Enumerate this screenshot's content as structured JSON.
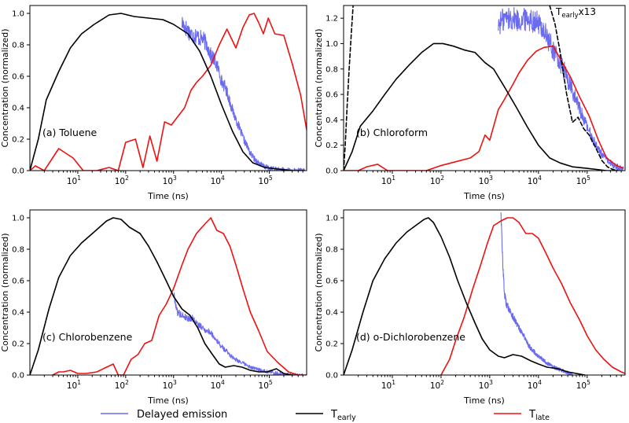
{
  "figure": {
    "legend": [
      {
        "key": "delayed",
        "label": "Delayed emission",
        "color": "#6b6bf0"
      },
      {
        "key": "early",
        "label": "T",
        "sub": "early",
        "color": "#000000"
      },
      {
        "key": "late",
        "label": "T",
        "sub": "late",
        "color": "#ee1111"
      }
    ]
  },
  "chart_data": [
    {
      "type": "line",
      "title": "(a) Toluene",
      "xlabel": "Time (ns)",
      "ylabel": "Concentration (normalized)",
      "xscale": "log",
      "xlim": [
        1,
        600000
      ],
      "ylim": [
        0,
        1.05
      ],
      "yticks": [
        "0.0",
        "0.2",
        "0.4",
        "0.6",
        "0.8",
        "1.0"
      ],
      "yticks_values": [
        0,
        0.2,
        0.4,
        0.6,
        0.8,
        1.0
      ],
      "xticks": [
        {
          "base": "10",
          "exp": "1",
          "value": 10
        },
        {
          "base": "10",
          "exp": "2",
          "value": 100
        },
        {
          "base": "10",
          "exp": "3",
          "value": 1000
        },
        {
          "base": "10",
          "exp": "4",
          "value": 10000
        },
        {
          "base": "10",
          "exp": "5",
          "value": 100000
        }
      ],
      "series": [
        {
          "name": "T_early",
          "color": "#000000",
          "x": [
            1,
            1.5,
            2.2,
            4,
            7,
            12,
            22,
            45,
            80,
            150,
            300,
            600,
            1000,
            2000,
            3500,
            6000,
            10000,
            17000,
            28000,
            45000,
            80000,
            150000,
            300000,
            550000
          ],
          "y": [
            0,
            0.2,
            0.45,
            0.63,
            0.78,
            0.87,
            0.93,
            0.99,
            1.0,
            0.98,
            0.97,
            0.96,
            0.93,
            0.87,
            0.76,
            0.6,
            0.42,
            0.25,
            0.12,
            0.05,
            0.02,
            0.01,
            0.0,
            0.0
          ]
        },
        {
          "name": "T_late",
          "color": "#ee1111",
          "x": [
            1,
            1.3,
            2,
            4,
            8,
            13,
            25,
            45,
            70,
            100,
            160,
            230,
            320,
            450,
            650,
            900,
            1200,
            1700,
            2300,
            3000,
            4000,
            6000,
            9000,
            13000,
            20000,
            28000,
            38000,
            48000,
            60000,
            75000,
            95000,
            130000,
            200000,
            300000,
            450000,
            600000
          ],
          "y": [
            0,
            0.03,
            0.0,
            0.14,
            0.08,
            0.0,
            0.0,
            0.02,
            0.0,
            0.18,
            0.2,
            0.02,
            0.22,
            0.06,
            0.31,
            0.29,
            0.34,
            0.4,
            0.51,
            0.56,
            0.6,
            0.67,
            0.8,
            0.9,
            0.78,
            0.91,
            0.99,
            1.0,
            0.94,
            0.87,
            0.97,
            0.87,
            0.86,
            0.68,
            0.48,
            0.26
          ]
        },
        {
          "name": "Delayed emission",
          "color": "#6b6bf0",
          "noisy": true,
          "x": [
            1500,
            2000,
            2500,
            3000,
            3500,
            4000,
            4500,
            5000,
            6000,
            7000,
            8000,
            9000,
            10000,
            12000,
            14000,
            16000,
            18000,
            20000,
            25000,
            30000,
            35000,
            40000,
            50000,
            60000,
            70000,
            80000,
            100000,
            130000,
            170000,
            220000,
            300000,
            400000,
            550000
          ],
          "y": [
            0.94,
            0.89,
            0.86,
            0.86,
            0.84,
            0.84,
            0.82,
            0.8,
            0.73,
            0.71,
            0.67,
            0.63,
            0.57,
            0.53,
            0.47,
            0.41,
            0.36,
            0.33,
            0.25,
            0.19,
            0.15,
            0.11,
            0.07,
            0.05,
            0.035,
            0.025,
            0.015,
            0.01,
            0.005,
            0.003,
            0.001,
            0.0,
            0.0
          ],
          "noise": 0.045
        }
      ]
    },
    {
      "type": "line",
      "title": "(b) Chloroform",
      "xlabel": "Time (ns)",
      "ylabel": "Concentration (normalized)",
      "xscale": "log",
      "xlim": [
        1,
        600000
      ],
      "ylim": [
        0,
        1.3
      ],
      "yticks": [
        "0.0",
        "0.2",
        "0.4",
        "0.6",
        "0.8",
        "1.0",
        "1.2"
      ],
      "yticks_values": [
        0,
        0.2,
        0.4,
        0.6,
        0.8,
        1.0,
        1.2
      ],
      "xticks": [
        {
          "base": "10",
          "exp": "1",
          "value": 10
        },
        {
          "base": "10",
          "exp": "2",
          "value": 100
        },
        {
          "base": "10",
          "exp": "3",
          "value": 1000
        },
        {
          "base": "10",
          "exp": "4",
          "value": 10000
        },
        {
          "base": "10",
          "exp": "5",
          "value": 100000
        }
      ],
      "annotation": {
        "text": "T",
        "sub": "early",
        "tail": "x13"
      },
      "series": [
        {
          "name": "T_early",
          "color": "#000000",
          "x": [
            1,
            1.5,
            2.2,
            4,
            7,
            12,
            22,
            40,
            70,
            110,
            180,
            300,
            500,
            800,
            1200,
            2000,
            3500,
            6000,
            10000,
            17000,
            28000,
            50000,
            90000,
            150000,
            250000,
            400000
          ],
          "y": [
            0,
            0.15,
            0.35,
            0.47,
            0.6,
            0.72,
            0.83,
            0.93,
            1.0,
            1.0,
            0.98,
            0.95,
            0.93,
            0.85,
            0.8,
            0.66,
            0.5,
            0.34,
            0.2,
            0.1,
            0.06,
            0.03,
            0.02,
            0.01,
            0.0,
            0.0
          ]
        },
        {
          "name": "T_late",
          "color": "#ee1111",
          "x": [
            1,
            2,
            3,
            5,
            8,
            20,
            50,
            100,
            200,
            400,
            600,
            800,
            1000,
            1500,
            2000,
            3000,
            4000,
            6000,
            9000,
            13000,
            20000,
            30000,
            45000,
            70000,
            110000,
            170000,
            250000,
            400000,
            550000
          ],
          "y": [
            0,
            0.0,
            0.03,
            0.05,
            0.0,
            0.0,
            0.0,
            0.04,
            0.07,
            0.1,
            0.15,
            0.28,
            0.24,
            0.48,
            0.56,
            0.68,
            0.77,
            0.87,
            0.94,
            0.97,
            0.98,
            0.86,
            0.74,
            0.58,
            0.43,
            0.24,
            0.1,
            0.04,
            0.02
          ]
        },
        {
          "name": "T_early x13",
          "color": "#000000",
          "dashed": true,
          "x": [
            1,
            1.08,
            1.18,
            1.3,
            1.45,
            1.6
          ],
          "y": [
            0,
            0.2,
            0.5,
            0.8,
            1.1,
            1.35
          ],
          "x2": [
            17000,
            22000,
            28000,
            38000,
            50000,
            65000,
            85000,
            110000,
            150000,
            200000,
            260000,
            330000,
            420000
          ],
          "y2": [
            1.3,
            1.15,
            0.93,
            0.6,
            0.38,
            0.42,
            0.33,
            0.28,
            0.18,
            0.08,
            0.03,
            0.01,
            0.0
          ]
        },
        {
          "name": "Delayed emission",
          "color": "#6b6bf0",
          "noisy": true,
          "x": [
            1500,
            2000,
            3000,
            4000,
            6000,
            8000,
            10000,
            13000,
            16000,
            20000,
            25000,
            30000,
            40000,
            50000,
            65000,
            80000,
            100000,
            130000,
            170000,
            220000,
            300000,
            400000,
            550000
          ],
          "y": [
            1.15,
            1.2,
            1.2,
            1.18,
            1.2,
            1.18,
            1.16,
            1.1,
            1.02,
            0.95,
            0.88,
            0.82,
            0.72,
            0.62,
            0.52,
            0.43,
            0.34,
            0.25,
            0.17,
            0.11,
            0.06,
            0.03,
            0.01
          ],
          "noise": 0.07
        }
      ]
    },
    {
      "type": "line",
      "title": "(c) Chlorobenzene",
      "xlabel": "Time (ns)",
      "ylabel": "Concentration (normalized)",
      "xscale": "log",
      "xlim": [
        1,
        600000
      ],
      "ylim": [
        0,
        1.05
      ],
      "yticks": [
        "0.0",
        "0.2",
        "0.4",
        "0.6",
        "0.8",
        "1.0"
      ],
      "yticks_values": [
        0,
        0.2,
        0.4,
        0.6,
        0.8,
        1.0
      ],
      "xticks": [
        {
          "base": "10",
          "exp": "1",
          "value": 10
        },
        {
          "base": "10",
          "exp": "2",
          "value": 100
        },
        {
          "base": "10",
          "exp": "3",
          "value": 1000
        },
        {
          "base": "10",
          "exp": "4",
          "value": 10000
        },
        {
          "base": "10",
          "exp": "5",
          "value": 100000
        }
      ],
      "series": [
        {
          "name": "T_early",
          "color": "#000000",
          "x": [
            1,
            1.5,
            2.5,
            4,
            7,
            12,
            22,
            40,
            55,
            80,
            120,
            200,
            300,
            450,
            700,
            1000,
            1500,
            2200,
            3200,
            4500,
            6500,
            9000,
            12000,
            18000,
            27000,
            40000,
            60000,
            90000,
            140000,
            200000,
            300000
          ],
          "y": [
            0,
            0.16,
            0.42,
            0.62,
            0.76,
            0.84,
            0.91,
            0.98,
            1.0,
            0.99,
            0.94,
            0.9,
            0.82,
            0.72,
            0.6,
            0.5,
            0.42,
            0.38,
            0.3,
            0.2,
            0.13,
            0.07,
            0.05,
            0.06,
            0.05,
            0.03,
            0.02,
            0.02,
            0.04,
            0.01,
            0.0
          ]
        },
        {
          "name": "T_late",
          "color": "#ee1111",
          "x": [
            3,
            4,
            5,
            7,
            10,
            15,
            25,
            40,
            55,
            70,
            90,
            130,
            180,
            250,
            350,
            500,
            700,
            1000,
            1500,
            2000,
            3000,
            4500,
            6000,
            8000,
            11000,
            15000,
            20000,
            28000,
            40000,
            60000,
            90000,
            150000,
            250000,
            400000,
            600000
          ],
          "y": [
            0,
            0.02,
            0.02,
            0.03,
            0.01,
            0.01,
            0.02,
            0.05,
            0.07,
            0.0,
            0.0,
            0.1,
            0.13,
            0.2,
            0.22,
            0.38,
            0.45,
            0.55,
            0.7,
            0.8,
            0.9,
            0.96,
            1.0,
            0.92,
            0.9,
            0.82,
            0.7,
            0.55,
            0.4,
            0.28,
            0.15,
            0.08,
            0.02,
            0.0,
            0.0
          ]
        },
        {
          "name": "Delayed emission",
          "color": "#6b6bf0",
          "noisy": true,
          "x": [
            1000,
            1200,
            1500,
            2000,
            2500,
            3000,
            4000,
            5000,
            6000,
            8000,
            10000,
            13000,
            16000,
            20000,
            30000,
            40000,
            50000,
            70000,
            100000,
            150000,
            220000,
            330000,
            500000
          ],
          "y": [
            0.52,
            0.4,
            0.38,
            0.36,
            0.36,
            0.33,
            0.3,
            0.28,
            0.27,
            0.22,
            0.18,
            0.15,
            0.12,
            0.1,
            0.07,
            0.05,
            0.04,
            0.03,
            0.02,
            0.01,
            0.005,
            0.0,
            0.0
          ],
          "noise": 0.03
        }
      ]
    },
    {
      "type": "line",
      "title": "(d) o-Dichlorobenzene",
      "xlabel": "Time (ns)",
      "ylabel": "Concentration (normalized)",
      "xscale": "log",
      "xlim": [
        1,
        600000
      ],
      "ylim": [
        0,
        1.05
      ],
      "yticks": [
        "0.0",
        "0.2",
        "0.4",
        "0.6",
        "0.8",
        "1.0"
      ],
      "yticks_values": [
        0,
        0.2,
        0.4,
        0.6,
        0.8,
        1.0
      ],
      "xticks": [
        {
          "base": "10",
          "exp": "1",
          "value": 10
        },
        {
          "base": "10",
          "exp": "2",
          "value": 100
        },
        {
          "base": "10",
          "exp": "3",
          "value": 1000
        },
        {
          "base": "10",
          "exp": "4",
          "value": 10000
        },
        {
          "base": "10",
          "exp": "5",
          "value": 100000
        }
      ],
      "series": [
        {
          "name": "T_early",
          "color": "#000000",
          "x": [
            1,
            1.5,
            2.5,
            4,
            7,
            12,
            20,
            30,
            45,
            55,
            70,
            100,
            150,
            220,
            330,
            500,
            700,
            1000,
            1500,
            2000,
            3000,
            4500,
            7000,
            10000,
            15000,
            25000,
            40000,
            60000,
            90000
          ],
          "y": [
            0,
            0.16,
            0.4,
            0.6,
            0.74,
            0.84,
            0.91,
            0.95,
            0.99,
            1.0,
            0.97,
            0.88,
            0.75,
            0.6,
            0.46,
            0.33,
            0.23,
            0.16,
            0.12,
            0.11,
            0.13,
            0.12,
            0.09,
            0.07,
            0.05,
            0.04,
            0.02,
            0.01,
            0.0
          ]
        },
        {
          "name": "T_late",
          "color": "#ee1111",
          "x": [
            100,
            150,
            200,
            300,
            450,
            650,
            900,
            1200,
            1700,
            2300,
            3000,
            4000,
            5500,
            7500,
            10000,
            14000,
            20000,
            30000,
            45000,
            70000,
            100000,
            150000,
            220000,
            330000,
            500000,
            600000
          ],
          "y": [
            0,
            0.1,
            0.22,
            0.37,
            0.55,
            0.7,
            0.84,
            0.95,
            0.98,
            1.0,
            1.0,
            0.97,
            0.9,
            0.9,
            0.87,
            0.78,
            0.68,
            0.58,
            0.46,
            0.35,
            0.25,
            0.16,
            0.1,
            0.05,
            0.02,
            0.01
          ]
        },
        {
          "name": "Delayed emission",
          "color": "#6b6bf0",
          "noisy": true,
          "x": [
            1700,
            1800,
            1900,
            2000,
            2200,
            2500,
            3000,
            3500,
            4000,
            5000,
            6000,
            7000,
            8000,
            10000,
            13000,
            16000,
            20000,
            25000,
            30000,
            40000,
            50000
          ],
          "y": [
            1.05,
            0.8,
            0.65,
            0.52,
            0.45,
            0.42,
            0.37,
            0.33,
            0.3,
            0.25,
            0.2,
            0.17,
            0.15,
            0.12,
            0.09,
            0.07,
            0.05,
            0.04,
            0.03,
            0.015,
            0.0
          ],
          "noise": 0.03
        }
      ]
    }
  ]
}
